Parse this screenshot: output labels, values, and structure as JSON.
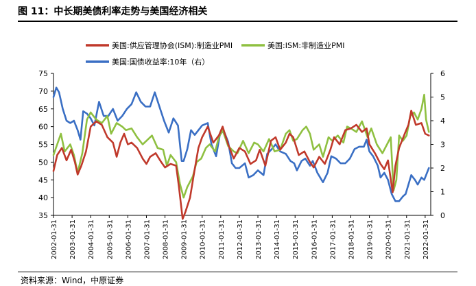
{
  "figure": {
    "title": "图 11：中长期美债利率走势与美国经济相关",
    "source": "资料来源：Wind，中原证券"
  },
  "colors": {
    "ism_mfg": "#c0392b",
    "ism_nonmfg": "#8fc041",
    "us10y": "#3a6fc4"
  },
  "chart_data": {
    "type": "line",
    "title": "",
    "xlabel": "",
    "ylabel_left": "",
    "ylabel_right": "",
    "ylim_left": [
      35,
      75
    ],
    "ylim_right": [
      0,
      6
    ],
    "yticks_left": [
      "75",
      "70",
      "65",
      "60",
      "55",
      "50",
      "45",
      "40",
      "35"
    ],
    "yticks_right": [
      "6",
      "5",
      "4",
      "3",
      "2",
      "1",
      "0"
    ],
    "x_ticks": [
      "2002-01-31",
      "2003-01-31",
      "2004-01-31",
      "2005-01-31",
      "2006-01-31",
      "2007-01-31",
      "2008-01-31",
      "2009-01-31",
      "2010-01-31",
      "2011-01-31",
      "2012-01-31",
      "2013-01-31",
      "2014-01-31",
      "2015-01-31",
      "2016-01-31",
      "2017-01-31",
      "2018-01-31",
      "2019-01-31",
      "2020-01-31",
      "2021-01-31",
      "2022-01-31"
    ],
    "x_range": [
      2002.0,
      2022.3
    ],
    "legend": [
      {
        "key": "ism_mfg",
        "label": "美国:供应管理协会(ISM):制造业PMI"
      },
      {
        "key": "ism_nonmfg",
        "label": "美国:ISM:非制造业PMI"
      },
      {
        "key": "us10y",
        "label": "美国:国债收益率:10年（右）"
      }
    ],
    "series": [
      {
        "key": "ism_mfg",
        "name": "美国:供应管理协会(ISM):制造业PMI",
        "axis": "left",
        "points": [
          [
            2002.0,
            47.5
          ],
          [
            2002.2,
            52
          ],
          [
            2002.45,
            54
          ],
          [
            2002.7,
            50.5
          ],
          [
            2002.95,
            53.5
          ],
          [
            2003.15,
            50
          ],
          [
            2003.3,
            46.5
          ],
          [
            2003.5,
            49
          ],
          [
            2003.75,
            53
          ],
          [
            2004.0,
            60
          ],
          [
            2004.3,
            61.5
          ],
          [
            2004.6,
            60.5
          ],
          [
            2004.9,
            57
          ],
          [
            2005.2,
            55.5
          ],
          [
            2005.4,
            51.5
          ],
          [
            2005.6,
            55.5
          ],
          [
            2005.8,
            58
          ],
          [
            2006.0,
            55
          ],
          [
            2006.2,
            55.5
          ],
          [
            2006.5,
            54
          ],
          [
            2006.8,
            51
          ],
          [
            2007.0,
            49.5
          ],
          [
            2007.2,
            51.5
          ],
          [
            2007.5,
            52.5
          ],
          [
            2007.8,
            50
          ],
          [
            2008.0,
            48.5
          ],
          [
            2008.3,
            49.5
          ],
          [
            2008.6,
            49
          ],
          [
            2008.75,
            43
          ],
          [
            2008.95,
            34
          ],
          [
            2009.1,
            36
          ],
          [
            2009.35,
            40
          ],
          [
            2009.6,
            48
          ],
          [
            2009.8,
            54
          ],
          [
            2010.0,
            57
          ],
          [
            2010.3,
            60
          ],
          [
            2010.6,
            55.5
          ],
          [
            2010.9,
            57.5
          ],
          [
            2011.1,
            60
          ],
          [
            2011.4,
            55
          ],
          [
            2011.7,
            51
          ],
          [
            2012.0,
            54
          ],
          [
            2012.3,
            53
          ],
          [
            2012.6,
            49.5
          ],
          [
            2012.9,
            50.5
          ],
          [
            2013.1,
            53.5
          ],
          [
            2013.4,
            49
          ],
          [
            2013.7,
            56
          ],
          [
            2013.95,
            57
          ],
          [
            2014.2,
            53.5
          ],
          [
            2014.5,
            55.5
          ],
          [
            2014.7,
            58
          ],
          [
            2014.9,
            57
          ],
          [
            2015.2,
            52
          ],
          [
            2015.5,
            53
          ],
          [
            2015.8,
            50
          ],
          [
            2016.0,
            48.5
          ],
          [
            2016.3,
            51.5
          ],
          [
            2016.6,
            49.5
          ],
          [
            2016.9,
            53.5
          ],
          [
            2017.1,
            57
          ],
          [
            2017.4,
            55
          ],
          [
            2017.7,
            59
          ],
          [
            2018.0,
            59.5
          ],
          [
            2018.3,
            60.5
          ],
          [
            2018.6,
            58.5
          ],
          [
            2018.85,
            59.5
          ],
          [
            2019.0,
            55
          ],
          [
            2019.3,
            52.5
          ],
          [
            2019.6,
            49.5
          ],
          [
            2019.8,
            48
          ],
          [
            2020.0,
            50.5
          ],
          [
            2020.25,
            41.5
          ],
          [
            2020.4,
            49
          ],
          [
            2020.6,
            54
          ],
          [
            2020.9,
            58
          ],
          [
            2021.1,
            60.5
          ],
          [
            2021.25,
            64.5
          ],
          [
            2021.5,
            60.5
          ],
          [
            2021.8,
            61
          ],
          [
            2022.0,
            58
          ],
          [
            2022.2,
            57.5
          ]
        ]
      },
      {
        "key": "ism_nonmfg",
        "name": "美国:ISM:非制造业PMI",
        "axis": "left",
        "points": [
          [
            2002.0,
            52
          ],
          [
            2002.2,
            55
          ],
          [
            2002.4,
            58
          ],
          [
            2002.6,
            53
          ],
          [
            2002.9,
            55
          ],
          [
            2003.1,
            52
          ],
          [
            2003.3,
            47
          ],
          [
            2003.55,
            52.5
          ],
          [
            2003.8,
            62
          ],
          [
            2004.0,
            64
          ],
          [
            2004.3,
            62
          ],
          [
            2004.6,
            61
          ],
          [
            2004.9,
            63
          ],
          [
            2005.1,
            58
          ],
          [
            2005.4,
            61
          ],
          [
            2005.7,
            60
          ],
          [
            2005.9,
            59
          ],
          [
            2006.2,
            59.5
          ],
          [
            2006.5,
            57
          ],
          [
            2006.8,
            55
          ],
          [
            2007.0,
            56
          ],
          [
            2007.3,
            57.5
          ],
          [
            2007.6,
            54
          ],
          [
            2007.9,
            53.5
          ],
          [
            2008.1,
            49
          ],
          [
            2008.3,
            52
          ],
          [
            2008.6,
            50
          ],
          [
            2008.8,
            44
          ],
          [
            2009.0,
            40
          ],
          [
            2009.2,
            43
          ],
          [
            2009.5,
            46
          ],
          [
            2009.7,
            50
          ],
          [
            2009.95,
            51
          ],
          [
            2010.2,
            54
          ],
          [
            2010.4,
            55
          ],
          [
            2010.7,
            53
          ],
          [
            2010.9,
            57
          ],
          [
            2011.1,
            59
          ],
          [
            2011.4,
            54.5
          ],
          [
            2011.7,
            53
          ],
          [
            2011.9,
            52.5
          ],
          [
            2012.2,
            56
          ],
          [
            2012.5,
            52.5
          ],
          [
            2012.8,
            55.5
          ],
          [
            2013.0,
            55
          ],
          [
            2013.3,
            53
          ],
          [
            2013.6,
            56.5
          ],
          [
            2013.9,
            53
          ],
          [
            2014.2,
            53.5
          ],
          [
            2014.5,
            58
          ],
          [
            2014.7,
            59
          ],
          [
            2014.9,
            56
          ],
          [
            2015.1,
            56.5
          ],
          [
            2015.4,
            59
          ],
          [
            2015.6,
            60
          ],
          [
            2015.8,
            58
          ],
          [
            2016.0,
            53.5
          ],
          [
            2016.3,
            55
          ],
          [
            2016.5,
            51.5
          ],
          [
            2016.8,
            57
          ],
          [
            2017.0,
            56
          ],
          [
            2017.3,
            57.5
          ],
          [
            2017.6,
            55.5
          ],
          [
            2017.8,
            60
          ],
          [
            2018.0,
            59.5
          ],
          [
            2018.3,
            58.5
          ],
          [
            2018.6,
            61.5
          ],
          [
            2018.9,
            57
          ],
          [
            2019.1,
            59.5
          ],
          [
            2019.4,
            55
          ],
          [
            2019.7,
            52.5
          ],
          [
            2019.95,
            55
          ],
          [
            2020.15,
            57
          ],
          [
            2020.3,
            42
          ],
          [
            2020.45,
            45
          ],
          [
            2020.6,
            57.5
          ],
          [
            2020.8,
            56
          ],
          [
            2021.0,
            57.5
          ],
          [
            2021.2,
            63
          ],
          [
            2021.4,
            64
          ],
          [
            2021.6,
            62
          ],
          [
            2021.8,
            65
          ],
          [
            2021.95,
            69
          ],
          [
            2022.05,
            62
          ],
          [
            2022.2,
            58.5
          ]
        ]
      },
      {
        "key": "us10y",
        "name": "美国:国债收益率:10年（右）",
        "axis": "right",
        "points": [
          [
            2002.0,
            5.0
          ],
          [
            2002.15,
            5.4
          ],
          [
            2002.3,
            5.2
          ],
          [
            2002.5,
            4.5
          ],
          [
            2002.7,
            4.0
          ],
          [
            2002.9,
            3.9
          ],
          [
            2003.1,
            4.0
          ],
          [
            2003.3,
            3.6
          ],
          [
            2003.45,
            3.2
          ],
          [
            2003.6,
            4.4
          ],
          [
            2003.8,
            4.3
          ],
          [
            2004.0,
            4.1
          ],
          [
            2004.2,
            3.8
          ],
          [
            2004.45,
            4.8
          ],
          [
            2004.7,
            4.2
          ],
          [
            2004.95,
            4.2
          ],
          [
            2005.2,
            4.5
          ],
          [
            2005.45,
            4.0
          ],
          [
            2005.7,
            4.2
          ],
          [
            2005.95,
            4.5
          ],
          [
            2006.2,
            4.7
          ],
          [
            2006.45,
            5.2
          ],
          [
            2006.7,
            4.8
          ],
          [
            2006.95,
            4.6
          ],
          [
            2007.2,
            4.6
          ],
          [
            2007.45,
            5.2
          ],
          [
            2007.7,
            4.6
          ],
          [
            2007.95,
            4.0
          ],
          [
            2008.2,
            3.5
          ],
          [
            2008.45,
            4.1
          ],
          [
            2008.7,
            3.8
          ],
          [
            2008.9,
            2.3
          ],
          [
            2009.0,
            2.3
          ],
          [
            2009.2,
            2.8
          ],
          [
            2009.4,
            3.6
          ],
          [
            2009.6,
            3.4
          ],
          [
            2009.8,
            3.6
          ],
          [
            2010.0,
            3.8
          ],
          [
            2010.3,
            3.9
          ],
          [
            2010.5,
            3.0
          ],
          [
            2010.75,
            2.5
          ],
          [
            2010.95,
            3.4
          ],
          [
            2011.15,
            3.6
          ],
          [
            2011.4,
            3.1
          ],
          [
            2011.6,
            2.2
          ],
          [
            2011.8,
            2.0
          ],
          [
            2012.0,
            2.0
          ],
          [
            2012.3,
            2.2
          ],
          [
            2012.5,
            1.6
          ],
          [
            2012.75,
            1.7
          ],
          [
            2013.0,
            1.9
          ],
          [
            2013.3,
            1.7
          ],
          [
            2013.5,
            2.6
          ],
          [
            2013.75,
            2.8
          ],
          [
            2013.95,
            3.0
          ],
          [
            2014.2,
            2.7
          ],
          [
            2014.5,
            2.6
          ],
          [
            2014.75,
            2.3
          ],
          [
            2014.95,
            2.2
          ],
          [
            2015.1,
            1.9
          ],
          [
            2015.35,
            2.3
          ],
          [
            2015.55,
            2.4
          ],
          [
            2015.8,
            2.1
          ],
          [
            2015.95,
            2.3
          ],
          [
            2016.2,
            1.8
          ],
          [
            2016.5,
            1.4
          ],
          [
            2016.75,
            1.8
          ],
          [
            2016.95,
            2.5
          ],
          [
            2017.2,
            2.4
          ],
          [
            2017.45,
            2.2
          ],
          [
            2017.7,
            2.2
          ],
          [
            2017.95,
            2.4
          ],
          [
            2018.2,
            2.8
          ],
          [
            2018.45,
            2.9
          ],
          [
            2018.7,
            2.9
          ],
          [
            2018.85,
            3.2
          ],
          [
            2019.0,
            2.7
          ],
          [
            2019.2,
            2.5
          ],
          [
            2019.45,
            2.1
          ],
          [
            2019.6,
            1.6
          ],
          [
            2019.8,
            1.8
          ],
          [
            2020.0,
            1.5
          ],
          [
            2020.2,
            0.9
          ],
          [
            2020.4,
            0.6
          ],
          [
            2020.6,
            0.6
          ],
          [
            2020.8,
            0.8
          ],
          [
            2020.95,
            0.9
          ],
          [
            2021.1,
            1.3
          ],
          [
            2021.25,
            1.7
          ],
          [
            2021.45,
            1.5
          ],
          [
            2021.6,
            1.3
          ],
          [
            2021.8,
            1.6
          ],
          [
            2021.95,
            1.5
          ],
          [
            2022.1,
            1.8
          ],
          [
            2022.2,
            2.0
          ]
        ]
      }
    ]
  }
}
